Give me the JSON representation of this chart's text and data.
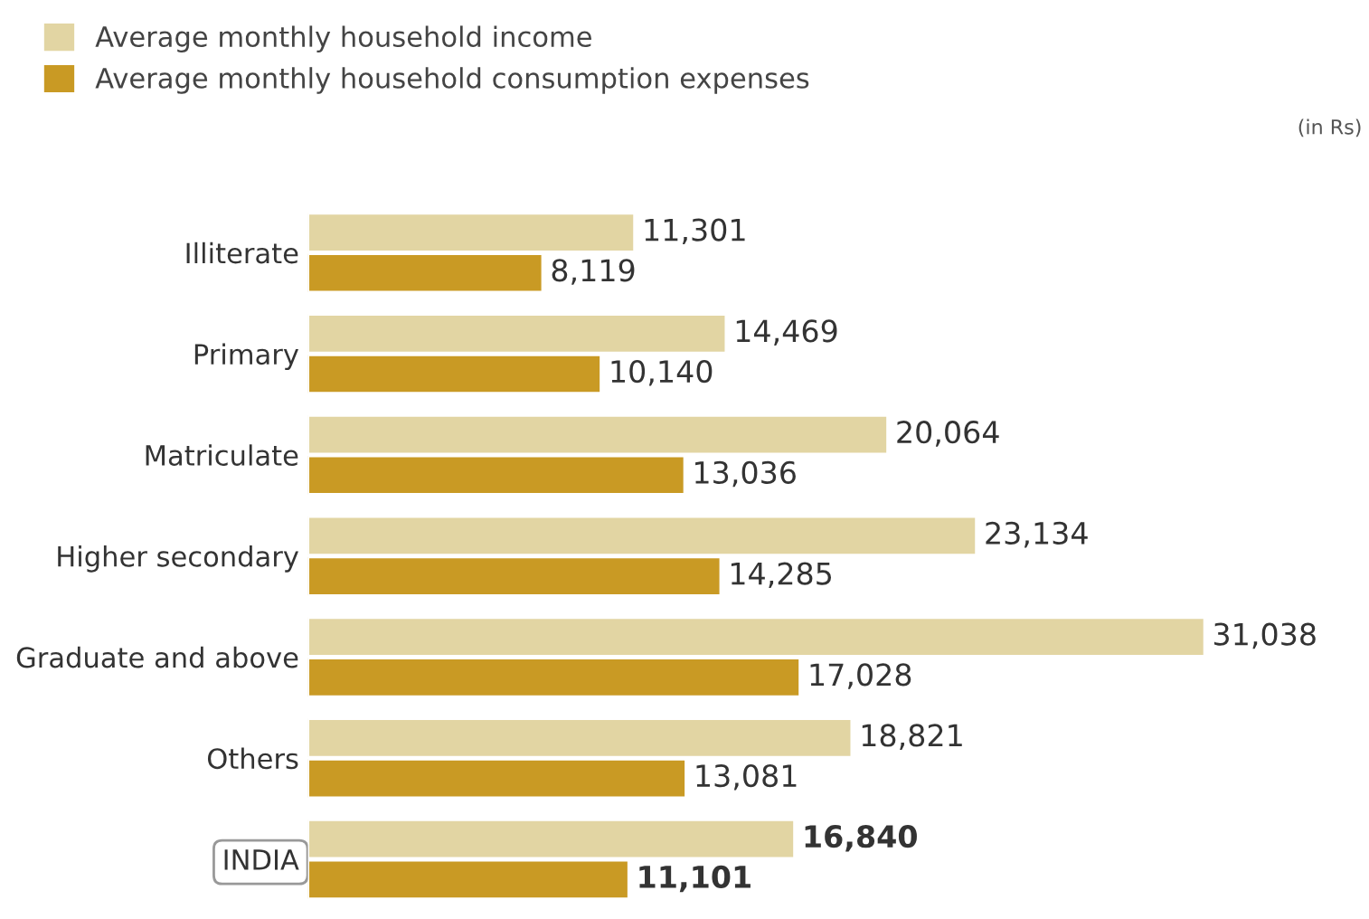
{
  "chart_data": {
    "type": "bar",
    "orientation": "horizontal",
    "categories": [
      "Illiterate",
      "Primary",
      "Matriculate",
      "Higher secondary",
      "Graduate and above",
      "Others",
      "INDIA"
    ],
    "series": [
      {
        "name": "Average monthly household income",
        "color": "#e2d5a3",
        "values": [
          11301,
          14469,
          20064,
          23134,
          31038,
          18821,
          16840
        ],
        "value_labels": [
          "11,301",
          "14,469",
          "20,064",
          "23,134",
          "31,038",
          "18,821",
          "16,840"
        ]
      },
      {
        "name": "Average monthly household consumption expenses",
        "color": "#c99a24",
        "values": [
          8119,
          10140,
          13036,
          14285,
          17028,
          13081,
          11101
        ],
        "value_labels": [
          "8,119",
          "10,140",
          "13,036",
          "14,285",
          "17,028",
          "13,081",
          "11,101"
        ]
      }
    ],
    "legend": "top left",
    "grid": false,
    "annotations": [
      "(in Rs)"
    ]
  }
}
